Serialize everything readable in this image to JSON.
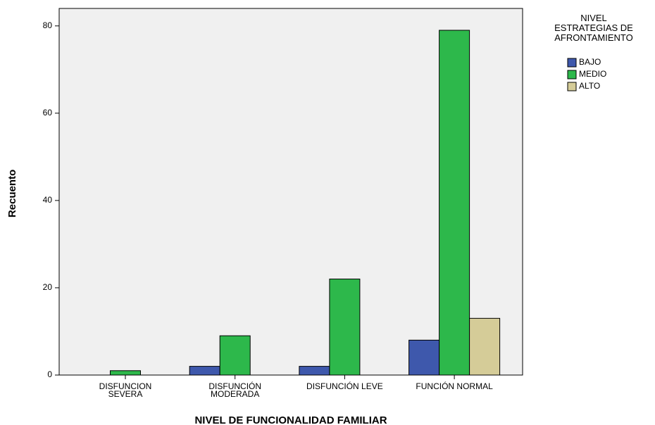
{
  "chart_data": {
    "type": "bar",
    "x_label": "NIVEL DE FUNCIONALIDAD FAMILIAR",
    "y_label": "Recuento",
    "legend_title": "NIVEL\nESTRATEGIAS DE\nAFRONTAMIENTO",
    "legend_position": "right",
    "categories": [
      "DISFUNCION\nSEVERA",
      "DISFUNCIÓN\nMODERADA",
      "DISFUNCIÓN LEVE",
      "FUNCIÓN NORMAL"
    ],
    "series": [
      {
        "name": "BAJO",
        "color": "#3e58ac",
        "values": [
          0,
          2,
          2,
          8
        ]
      },
      {
        "name": "MEDIO",
        "color": "#2db84b",
        "values": [
          1,
          9,
          22,
          79
        ]
      },
      {
        "name": "ALTO",
        "color": "#d5cc98",
        "values": [
          0,
          0,
          0,
          13
        ]
      }
    ],
    "ylim": [
      0,
      84
    ],
    "yticks": [
      0,
      20,
      40,
      60,
      80
    ],
    "grid": false
  }
}
